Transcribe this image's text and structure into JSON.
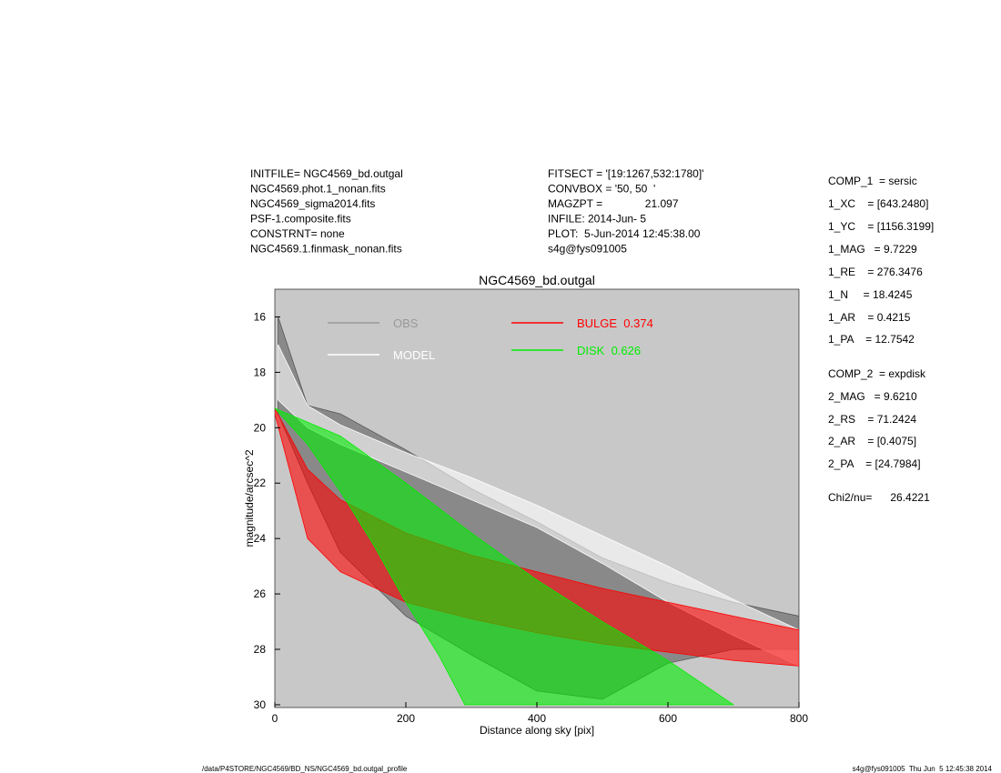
{
  "header_left": [
    "INITFILE= NGC4569_bd.outgal",
    "NGC4569.phot.1_nonan.fits",
    "NGC4569_sigma2014.fits",
    "PSF-1.composite.fits",
    "CONSTRNT= none",
    "NGC4569.1.finmask_nonan.fits"
  ],
  "header_mid": [
    "FITSECT = '[19:1267,532:1780]'",
    "CONVBOX = '50, 50  '",
    "MAGZPT =              21.097",
    "INFILE: 2014-Jun- 5",
    "PLOT:  5-Jun-2014 12:45:38.00",
    "s4g@fys091005"
  ],
  "params": [
    "COMP_1  = sersic",
    "1_XC    = [643.2480]",
    "1_YC    = [1156.3199]",
    "1_MAG   = 9.7229",
    "1_RE    = 276.3476",
    "1_N     = 18.4245",
    "1_AR    = 0.4215",
    "1_PA    = 12.7542",
    "COMP_2  = expdisk",
    "2_MAG   = 9.6210",
    "2_RS    = 71.2424",
    "2_AR    = [0.4075]",
    "2_PA    = [24.7984]",
    "Chi2/nu=      26.4221"
  ],
  "footer_left": "/data/P4STORE/NGC4569/BD_NS/NGC4569_bd.outgal_profile",
  "footer_right": "s4g@fys091005  Thu Jun  5 12:45:38 2014",
  "chart_data": {
    "type": "band",
    "title": "NGC4569_bd.outgal",
    "xlabel": "Distance along sky [pix]",
    "ylabel": "magnitude/arcsec^2",
    "xlim": [
      0,
      800
    ],
    "xticks": [
      0,
      200,
      400,
      600,
      800
    ],
    "ylim": [
      30.1,
      15
    ],
    "yticks": [
      16,
      18,
      20,
      22,
      24,
      26,
      28,
      30
    ],
    "background": "#c8c8c8",
    "series": [
      {
        "name": "OBS",
        "color": "#555555",
        "legend_color": "#999999",
        "x_low": [
          5,
          50,
          100,
          200,
          300,
          400,
          500,
          600,
          700,
          800
        ],
        "low": [
          16,
          19.2,
          19.5,
          20.8,
          22.2,
          23.4,
          24.7,
          25.6,
          26.3,
          26.8
        ],
        "x_high": [
          5,
          50,
          100,
          200,
          300,
          400,
          500,
          600,
          700,
          800
        ],
        "high": [
          19.5,
          22,
          24.5,
          26.8,
          28.2,
          29.5,
          29.8,
          28.5,
          28,
          28
        ]
      },
      {
        "name": "MODEL",
        "color": "#ffffff",
        "legend_color": "#ffffff",
        "x_low": [
          5,
          50,
          100,
          200,
          300,
          400,
          500,
          600,
          700,
          800
        ],
        "low": [
          17,
          19.2,
          19.9,
          20.9,
          21.8,
          22.8,
          23.9,
          25,
          26.2,
          27.3
        ],
        "x_high": [
          5,
          50,
          100,
          200,
          300,
          400,
          500,
          600,
          700,
          800
        ],
        "high": [
          19,
          20,
          20.6,
          21.6,
          22.6,
          23.6,
          24.9,
          26.3,
          27.5,
          28.6
        ]
      },
      {
        "name": "BULGE  0.374",
        "color": "#ff0000",
        "legend_color": "#ff0000",
        "x_low": [
          0,
          50,
          100,
          200,
          300,
          400,
          500,
          600,
          700,
          800
        ],
        "low": [
          19.3,
          21.5,
          22.6,
          23.8,
          24.6,
          25.2,
          25.8,
          26.3,
          26.8,
          27.3
        ],
        "x_high": [
          0,
          50,
          100,
          200,
          300,
          400,
          500,
          600,
          700,
          800
        ],
        "high": [
          19.5,
          24,
          25.2,
          26.3,
          26.9,
          27.4,
          27.8,
          28.1,
          28.4,
          28.6
        ]
      },
      {
        "name": "DISK  0.626",
        "color": "#00ee00",
        "legend_color": "#00ee00",
        "x_low": [
          0,
          100,
          200,
          300,
          400,
          500,
          600,
          700
        ],
        "low": [
          19.3,
          20.3,
          22,
          23.8,
          25.5,
          27,
          28.4,
          30
        ],
        "x_high": [
          0,
          50,
          100,
          150,
          200,
          250,
          290
        ],
        "high": [
          19.3,
          20.6,
          22.3,
          24.2,
          26.3,
          28.2,
          30
        ]
      }
    ]
  }
}
